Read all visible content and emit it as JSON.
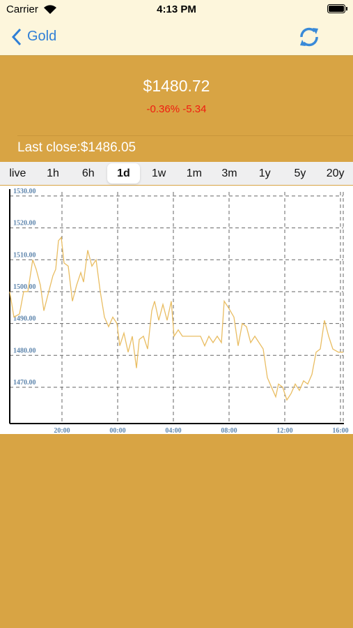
{
  "status_bar": {
    "carrier": "Carrier",
    "time": "4:13 PM"
  },
  "nav": {
    "back": "Gold"
  },
  "quote": {
    "price": "$1480.72",
    "change": "-0.36% -5.34",
    "last_close": "Last close:$1486.05"
  },
  "tabs": [
    "live",
    "1h",
    "6h",
    "1d",
    "1w",
    "1m",
    "3m",
    "1y",
    "5y",
    "20y"
  ],
  "selected_tab": 3,
  "chart_data": {
    "type": "line",
    "color": "#e9bd62",
    "grid": true,
    "x": [
      16.25,
      16.55,
      16.95,
      17.25,
      17.55,
      17.9,
      18.15,
      18.45,
      18.7,
      19.05,
      19.35,
      19.55,
      19.75,
      19.95,
      20.15,
      20.45,
      20.75,
      21.05,
      21.35,
      21.55,
      21.85,
      22.15,
      22.45,
      22.75,
      23.05,
      23.35,
      23.65,
      23.95,
      24.15,
      24.45,
      24.75,
      25.05,
      25.35,
      25.55,
      25.85,
      26.15,
      26.45,
      26.65,
      26.95,
      27.25,
      27.55,
      27.85,
      28.05,
      28.35,
      28.65,
      29.05,
      29.55,
      29.95,
      30.25,
      30.55,
      30.85,
      31.15,
      31.45,
      31.65,
      31.95,
      32.35,
      32.65,
      32.95,
      33.25,
      33.55,
      33.85,
      34.15,
      34.45,
      34.75,
      35.05,
      35.35,
      35.55,
      35.85,
      36.15,
      36.45,
      36.75,
      37.05,
      37.35,
      37.65,
      37.95,
      38.25,
      38.55,
      38.85,
      39.15,
      39.45,
      39.85,
      40.2
    ],
    "values": [
      1500,
      1492,
      1493,
      1500,
      1500,
      1510,
      1507,
      1502,
      1494,
      1500,
      1505,
      1507,
      1516,
      1517,
      1509,
      1508,
      1497,
      1502,
      1506,
      1503,
      1513,
      1508,
      1510,
      1500,
      1492,
      1489,
      1492,
      1490,
      1483,
      1487,
      1481,
      1486,
      1476,
      1485,
      1486,
      1482,
      1494,
      1497,
      1491,
      1496,
      1491,
      1497,
      1486,
      1488,
      1486,
      1486,
      1486,
      1486,
      1483,
      1486,
      1484,
      1486,
      1484,
      1497,
      1495,
      1492,
      1483,
      1490,
      1489,
      1484,
      1486,
      1484,
      1482,
      1473,
      1470,
      1467,
      1471,
      1470,
      1466,
      1468,
      1471,
      1469,
      1472,
      1471,
      1474,
      1481,
      1482,
      1491,
      1486,
      1482,
      1481,
      1481
    ],
    "xlim": [
      16.25,
      40.2
    ],
    "xticks": [
      {
        "value": 20,
        "label": "20:00"
      },
      {
        "value": 24,
        "label": "00:00"
      },
      {
        "value": 28,
        "label": "04:00"
      },
      {
        "value": 32,
        "label": "08:00"
      },
      {
        "value": 36,
        "label": "12:00"
      },
      {
        "value": 40,
        "label": "16:00"
      }
    ],
    "ylim": [
      1458.6,
      1531.3
    ],
    "yticks": [
      {
        "value": 1470,
        "label": "1470.00"
      },
      {
        "value": 1480,
        "label": "1480.00"
      },
      {
        "value": 1490,
        "label": "1490.00"
      },
      {
        "value": 1500,
        "label": "1500.00"
      },
      {
        "value": 1510,
        "label": "1510.00"
      },
      {
        "value": 1520,
        "label": "1520.00"
      },
      {
        "value": 1530,
        "label": "1530.00"
      }
    ]
  }
}
